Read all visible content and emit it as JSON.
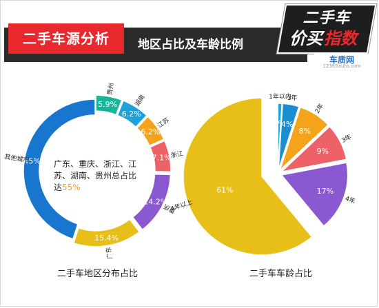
{
  "header": {
    "title": "二手车源分析",
    "subtitle": "地区占比及车龄比例"
  },
  "badge": {
    "line1": "二手车",
    "line2a": "价买",
    "line2b": "指数",
    "site": "车质网",
    "url": "12365auto.com"
  },
  "colors": {
    "accent_red": "#e8282c",
    "header_dark": "#2b2b2b"
  },
  "chart_data": [
    {
      "type": "pie",
      "variant": "donut",
      "title": "二手车地区分布占比",
      "categories": [
        "贵州",
        "湖南",
        "江苏",
        "浙江",
        "重庆",
        "广东",
        "其他城市"
      ],
      "values": [
        5.9,
        6.2,
        6.2,
        7.1,
        14.2,
        15.4,
        45
      ],
      "value_labels": [
        "5.9%",
        "6.2%",
        "6.2%",
        "7.1%",
        "14.2%",
        "15.4%",
        "45%"
      ],
      "colors": [
        "#16b597",
        "#20a0d8",
        "#f5a31a",
        "#ec6266",
        "#8a58d0",
        "#e8bf18",
        "#1976cf"
      ],
      "annotation": {
        "line1": "广东、重庆、浙江、江",
        "line2": "苏、湖南、贵州总占比",
        "line3a": "达",
        "line3b": "55%"
      }
    },
    {
      "type": "pie",
      "title": "二手车车龄占比",
      "categories": [
        "1年以内",
        "1年",
        "2年",
        "3年",
        "4年",
        "4年以上"
      ],
      "values": [
        1,
        4,
        8,
        9,
        17,
        61
      ],
      "value_labels": [
        "1%",
        "4%",
        "8%",
        "9%",
        "17%",
        "61%"
      ],
      "colors": [
        "#1aa8e0",
        "#1a8ed0",
        "#f5a31a",
        "#ec6266",
        "#8a58d0",
        "#e8bf18"
      ]
    }
  ]
}
